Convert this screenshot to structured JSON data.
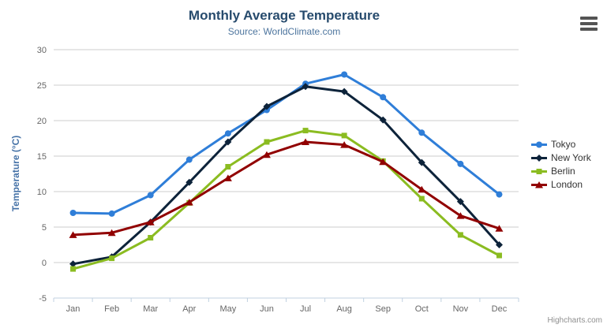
{
  "credits": "Highcharts.com",
  "chart_data": {
    "type": "line",
    "title": "Monthly Average Temperature",
    "subtitle": "Source: WorldClimate.com",
    "xlabel": "",
    "ylabel": "Temperature (°C)",
    "categories": [
      "Jan",
      "Feb",
      "Mar",
      "Apr",
      "May",
      "Jun",
      "Jul",
      "Aug",
      "Sep",
      "Oct",
      "Nov",
      "Dec"
    ],
    "series": [
      {
        "name": "Tokyo",
        "color": "#2f7ed8",
        "marker": "circle",
        "values": [
          7.0,
          6.9,
          9.5,
          14.5,
          18.2,
          21.5,
          25.2,
          26.5,
          23.3,
          18.3,
          13.9,
          9.6
        ]
      },
      {
        "name": "New York",
        "color": "#0d233a",
        "marker": "diamond",
        "values": [
          -0.2,
          0.8,
          5.7,
          11.3,
          17.0,
          22.0,
          24.8,
          24.1,
          20.1,
          14.1,
          8.6,
          2.5
        ]
      },
      {
        "name": "Berlin",
        "color": "#8bbc21",
        "marker": "square",
        "values": [
          -0.9,
          0.6,
          3.5,
          8.4,
          13.5,
          17.0,
          18.6,
          17.9,
          14.3,
          9.0,
          3.9,
          1.0
        ]
      },
      {
        "name": "London",
        "color": "#910000",
        "marker": "triangle",
        "values": [
          3.9,
          4.2,
          5.7,
          8.5,
          11.9,
          15.2,
          17.0,
          16.6,
          14.2,
          10.3,
          6.6,
          4.8
        ]
      }
    ],
    "ylim": [
      -5,
      30
    ],
    "ytick_step": 5,
    "grid": true,
    "legend_position": "right",
    "grid_color": "#cccccc",
    "axis_line_color": "#c0d0e0",
    "axis_label_color": "#666666"
  }
}
